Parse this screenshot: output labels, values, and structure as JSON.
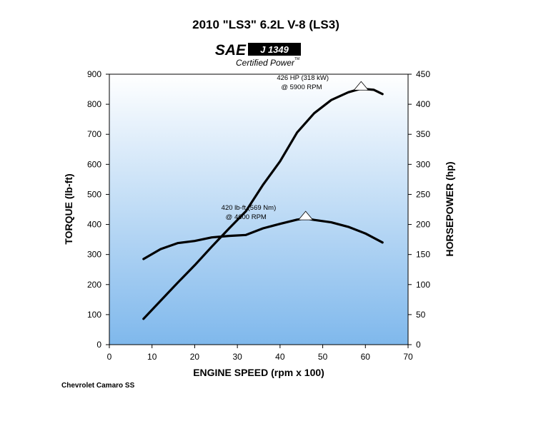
{
  "chart_data": {
    "type": "line",
    "title": "2010 \"LS3\" 6.2L V-8 (LS3)",
    "logo": {
      "sae": "SAE",
      "standard": "J 1349",
      "certified": "Certified Power",
      "tm": "TM"
    },
    "xlabel": "ENGINE SPEED (rpm x 100)",
    "ylabel_left": "TORQUE (lb-ft)",
    "ylabel_right": "HORSEPOWER (hp)",
    "xlim": [
      0,
      70
    ],
    "ylim_left": [
      0,
      900
    ],
    "ylim_right": [
      0,
      450
    ],
    "x_ticks": [
      0,
      10,
      20,
      30,
      40,
      50,
      60,
      70
    ],
    "y_left_ticks": [
      0,
      100,
      200,
      300,
      400,
      500,
      600,
      700,
      800,
      900
    ],
    "y_right_ticks": [
      0,
      50,
      100,
      150,
      200,
      250,
      300,
      350,
      400,
      450
    ],
    "series": [
      {
        "name": "Torque",
        "axis": "left",
        "x": [
          8,
          12,
          16,
          20,
          24,
          28,
          32,
          36,
          40,
          44,
          46,
          48,
          52,
          56,
          60,
          64
        ],
        "values": [
          285,
          318,
          338,
          345,
          357,
          362,
          365,
          387,
          402,
          416,
          420,
          415,
          407,
          392,
          370,
          340
        ]
      },
      {
        "name": "Horsepower",
        "axis": "right",
        "x": [
          8,
          12,
          16,
          20,
          24,
          28,
          32,
          36,
          40,
          44,
          48,
          52,
          56,
          59,
          62,
          64
        ],
        "values": [
          43,
          73,
          103,
          132,
          163,
          193,
          222,
          266,
          305,
          353,
          385,
          407,
          420,
          426,
          424,
          417
        ]
      }
    ],
    "annotations": [
      {
        "line1": "426 HP (318 kW)",
        "line2": "@ 5900 RPM",
        "x": 59,
        "value": 426,
        "axis": "right"
      },
      {
        "line1": "420 lb-ft (569 Nm)",
        "line2": "@ 4600 RPM",
        "x": 46,
        "value": 420,
        "axis": "left"
      }
    ],
    "footnote": "Chevrolet Camaro SS",
    "colors": {
      "line": "#000000",
      "gradient_top": "#ffffff",
      "gradient_bottom": "#7fb8ec"
    }
  }
}
